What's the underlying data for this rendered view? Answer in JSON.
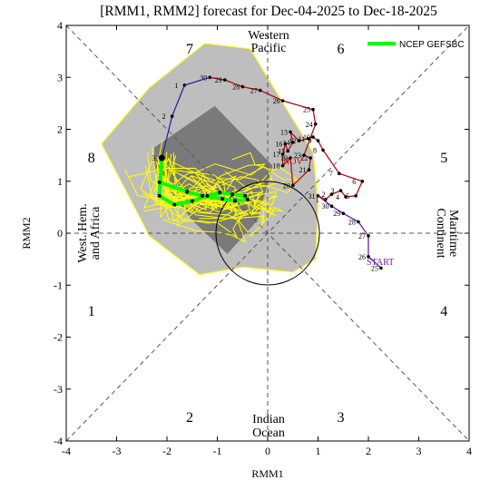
{
  "chart_data": {
    "type": "line",
    "title": "[RMM1, RMM2] forecast for Dec-04-2025 to Dec-18-2025",
    "xlabel": "RMM1",
    "ylabel": "RMM2",
    "xlim": [
      -4,
      4
    ],
    "ylim": [
      -4,
      4
    ],
    "x_ticks": [
      "-4",
      "-3",
      "-2",
      "-1",
      "0",
      "1",
      "2",
      "3",
      "4"
    ],
    "y_ticks": [
      "-4",
      "-3",
      "-2",
      "-1",
      "0",
      "1",
      "2",
      "3",
      "4"
    ],
    "grid": false,
    "legend": {
      "placement": "top-right",
      "entries": [
        {
          "label": "NCEP GEFSBC",
          "color": "#00ff00"
        }
      ]
    },
    "phases": [
      {
        "label": "1",
        "x": -3.5,
        "y": -1.5
      },
      {
        "label": "2",
        "x": -1.55,
        "y": -3.55
      },
      {
        "label": "3",
        "x": 1.45,
        "y": -3.55
      },
      {
        "label": "4",
        "x": 3.5,
        "y": -1.5
      },
      {
        "label": "5",
        "x": 3.5,
        "y": 1.45
      },
      {
        "label": "6",
        "x": 1.45,
        "y": 3.55
      },
      {
        "label": "7",
        "x": -1.55,
        "y": 3.55
      },
      {
        "label": "8",
        "x": -3.5,
        "y": 1.45
      }
    ],
    "regions": [
      {
        "lines": [
          "Western",
          "Pacific"
        ]
      },
      {
        "lines": [
          "Indian",
          "Ocean"
        ]
      },
      {
        "lines": [
          "West. Hem.",
          "and Africa"
        ]
      },
      {
        "lines": [
          "Maritime",
          "Continent"
        ]
      }
    ],
    "annotations": {
      "start": "START",
      "nov": "NOV"
    },
    "colors": {
      "observed_oct": "#7020a0",
      "observed_nov": "#b01010",
      "observed_dec": "#2828a0",
      "ensemble_mean": "#00ff00",
      "members": "#ffff00",
      "outer_spread": "#bebebe",
      "inner_spread": "#7a7a7a"
    },
    "observed_oct": {
      "color": "#7020a0",
      "points": [
        {
          "day": "25",
          "x": 2.25,
          "y": -0.67
        },
        {
          "day": "26",
          "x": 2.0,
          "y": -0.45
        },
        {
          "day": "27",
          "x": 2.0,
          "y": -0.05
        },
        {
          "day": "28",
          "x": 1.8,
          "y": 0.22
        },
        {
          "day": "29",
          "x": 1.5,
          "y": 0.38
        },
        {
          "day": "30",
          "x": 1.27,
          "y": 0.52
        },
        {
          "day": "31",
          "x": 1.0,
          "y": 0.72
        }
      ]
    },
    "observed_nov": {
      "color": "#b01010",
      "points": [
        {
          "day": "1",
          "x": 1.15,
          "y": 0.65
        },
        {
          "day": "2",
          "x": 1.27,
          "y": 0.75
        },
        {
          "day": "3",
          "x": 1.45,
          "y": 0.82
        },
        {
          "day": "4",
          "x": 1.55,
          "y": 0.7
        },
        {
          "day": "5",
          "x": 1.75,
          "y": 0.72
        },
        {
          "day": "6",
          "x": 1.88,
          "y": 1.0
        },
        {
          "day": "7",
          "x": 1.42,
          "y": 1.15
        },
        {
          "day": "8",
          "x": 1.1,
          "y": 1.6
        },
        {
          "day": "9",
          "x": 1.0,
          "y": 1.78
        },
        {
          "day": "10",
          "x": 0.9,
          "y": 1.85
        },
        {
          "day": "11",
          "x": 0.8,
          "y": 1.82
        },
        {
          "day": "12",
          "x": 0.62,
          "y": 1.78
        },
        {
          "day": "13",
          "x": 0.45,
          "y": 1.95
        },
        {
          "day": "14",
          "x": 0.5,
          "y": 1.75
        },
        {
          "day": "15",
          "x": 0.4,
          "y": 1.58
        },
        {
          "day": "16",
          "x": 0.35,
          "y": 1.72
        },
        {
          "day": "17",
          "x": 0.3,
          "y": 1.52
        },
        {
          "day": "18",
          "x": 0.3,
          "y": 1.3
        },
        {
          "day": "19",
          "x": 0.45,
          "y": 1.45
        },
        {
          "day": "20",
          "x": 0.5,
          "y": 0.92
        },
        {
          "day": "21",
          "x": 0.82,
          "y": 1.22
        },
        {
          "day": "22",
          "x": 0.85,
          "y": 1.45
        },
        {
          "day": "23",
          "x": 0.72,
          "y": 1.5
        },
        {
          "day": "24",
          "x": 0.95,
          "y": 2.1
        },
        {
          "day": "25",
          "x": 0.9,
          "y": 2.38
        },
        {
          "day": "26",
          "x": 0.3,
          "y": 2.55
        },
        {
          "day": "27",
          "x": -0.15,
          "y": 2.75
        },
        {
          "day": "28",
          "x": -0.5,
          "y": 2.82
        },
        {
          "day": "29",
          "x": -0.85,
          "y": 2.95
        },
        {
          "day": "30",
          "x": -1.15,
          "y": 3.0
        }
      ]
    },
    "observed_dec": {
      "color": "#2828a0",
      "points": [
        {
          "day": "1",
          "x": -1.65,
          "y": 2.85
        },
        {
          "day": "2",
          "x": -1.9,
          "y": 2.25
        },
        {
          "day": "3",
          "x": -2.1,
          "y": 1.45
        }
      ]
    },
    "ensemble_mean": {
      "name": "NCEP GEFSBC",
      "color": "#00ff00",
      "points": [
        {
          "x": -2.1,
          "y": 1.45
        },
        {
          "x": -2.15,
          "y": 0.72
        },
        {
          "x": -1.85,
          "y": 0.55
        },
        {
          "x": -1.5,
          "y": 0.62
        },
        {
          "x": -1.2,
          "y": 0.72
        },
        {
          "x": -0.95,
          "y": 0.78
        },
        {
          "x": -0.7,
          "y": 0.75
        },
        {
          "x": -0.45,
          "y": 0.72
        },
        {
          "x": -0.4,
          "y": 0.65
        },
        {
          "x": -0.65,
          "y": 0.62
        },
        {
          "x": -0.9,
          "y": 0.66
        },
        {
          "x": -1.3,
          "y": 0.72
        },
        {
          "x": -1.6,
          "y": 0.8
        },
        {
          "x": -2.15,
          "y": 0.98
        }
      ]
    },
    "outer_spread": {
      "color": "#bebebe",
      "points": [
        {
          "x": -3.3,
          "y": 1.72
        },
        {
          "x": -2.35,
          "y": 2.8
        },
        {
          "x": -1.25,
          "y": 3.65
        },
        {
          "x": -0.35,
          "y": 3.55
        },
        {
          "x": 0.9,
          "y": 1.55
        },
        {
          "x": 1.0,
          "y": 0.55
        },
        {
          "x": 0.95,
          "y": -0.5
        },
        {
          "x": 0.5,
          "y": -0.75
        },
        {
          "x": -0.5,
          "y": -0.65
        },
        {
          "x": -1.35,
          "y": -0.8
        },
        {
          "x": -2.35,
          "y": -0.05
        }
      ]
    },
    "inner_spread": {
      "color": "#7a7a7a",
      "points": [
        {
          "x": -2.25,
          "y": 1.65
        },
        {
          "x": -1.05,
          "y": 2.45
        },
        {
          "x": 0.1,
          "y": 1.3
        },
        {
          "x": -0.2,
          "y": 0.25
        },
        {
          "x": -0.8,
          "y": -0.4
        },
        {
          "x": -1.5,
          "y": 0.25
        },
        {
          "x": -2.25,
          "y": 1.2
        }
      ]
    }
  }
}
